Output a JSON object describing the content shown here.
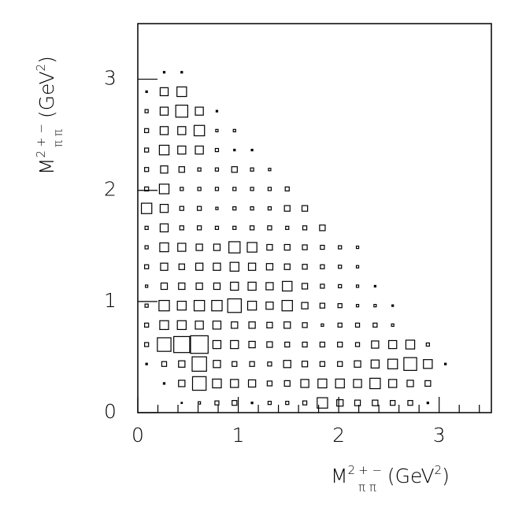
{
  "chart_data": {
    "type": "box2d",
    "x_centers": [
      0.0875,
      0.2625,
      0.4375,
      0.6125,
      0.7875,
      0.9625,
      1.1375,
      1.3125,
      1.4875,
      1.6625,
      1.8375,
      2.0125,
      2.1875,
      2.3625,
      2.5375,
      2.7125,
      2.8875,
      3.0625
    ],
    "y_centers": [
      0.0875,
      0.2625,
      0.4375,
      0.6125,
      0.7875,
      0.9625,
      1.1375,
      1.3125,
      1.4875,
      1.6625,
      1.8375,
      2.0125,
      2.1875,
      2.3625,
      2.5375,
      2.7125,
      2.8875,
      3.0625
    ],
    "bin_width": 0.175,
    "values": [
      [
        null,
        null,
        1,
        3,
        5,
        6,
        2,
        4,
        4,
        5,
        13,
        8,
        7,
        7,
        6,
        6,
        2,
        null
      ],
      [
        null,
        2,
        8,
        17,
        11,
        10,
        9,
        6,
        7,
        10,
        11,
        11,
        10,
        13,
        10,
        8,
        7,
        null
      ],
      [
        2,
        6,
        8,
        18,
        9,
        6,
        6,
        5,
        9,
        7,
        6,
        6,
        8,
        10,
        12,
        16,
        11,
        2
      ],
      [
        5,
        17,
        20,
        22,
        10,
        10,
        8,
        7,
        6,
        6,
        6,
        6,
        5,
        9,
        10,
        11,
        4,
        null
      ],
      [
        5,
        11,
        11,
        10,
        10,
        8,
        8,
        7,
        8,
        6,
        3,
        5,
        5,
        5,
        3,
        null,
        null,
        null
      ],
      [
        4,
        13,
        11,
        13,
        13,
        17,
        11,
        9,
        13,
        8,
        6,
        5,
        3,
        3,
        2,
        null,
        null,
        null
      ],
      [
        3,
        8,
        8,
        8,
        8,
        10,
        10,
        9,
        12,
        7,
        5,
        4,
        3,
        2,
        null,
        null,
        null,
        null
      ],
      [
        5,
        9,
        7,
        9,
        9,
        11,
        9,
        8,
        7,
        6,
        5,
        4,
        3,
        null,
        null,
        null,
        null,
        null
      ],
      [
        4,
        11,
        10,
        8,
        8,
        14,
        12,
        7,
        7,
        6,
        5,
        4,
        3,
        null,
        null,
        null,
        null,
        null
      ],
      [
        4,
        10,
        5,
        5,
        4,
        4,
        5,
        5,
        4,
        5,
        7,
        null,
        null,
        null,
        null,
        null,
        null,
        null
      ],
      [
        13,
        10,
        5,
        5,
        3,
        4,
        4,
        4,
        7,
        7,
        null,
        null,
        null,
        null,
        null,
        null,
        null,
        null
      ],
      [
        5,
        12,
        4,
        4,
        4,
        4,
        4,
        4,
        5,
        null,
        null,
        null,
        null,
        null,
        null,
        null,
        null,
        null
      ],
      [
        5,
        9,
        7,
        4,
        4,
        7,
        4,
        3,
        null,
        null,
        null,
        null,
        null,
        null,
        null,
        null,
        null,
        null
      ],
      [
        5,
        12,
        10,
        10,
        4,
        2,
        2,
        null,
        null,
        null,
        null,
        null,
        null,
        null,
        null,
        null,
        null,
        null
      ],
      [
        5,
        10,
        10,
        13,
        3,
        3,
        null,
        null,
        null,
        null,
        null,
        null,
        null,
        null,
        null,
        null,
        null,
        null
      ],
      [
        4,
        10,
        15,
        10,
        2,
        null,
        null,
        null,
        null,
        null,
        null,
        null,
        null,
        null,
        null,
        null,
        null,
        null
      ],
      [
        2,
        10,
        12,
        null,
        null,
        null,
        null,
        null,
        null,
        null,
        null,
        null,
        null,
        null,
        null,
        null,
        null,
        null
      ],
      [
        null,
        2,
        2,
        null,
        null,
        null,
        null,
        null,
        null,
        null,
        null,
        null,
        null,
        null,
        null,
        null,
        null,
        null
      ]
    ],
    "xlim": [
      0,
      3.52
    ],
    "ylim": [
      0,
      3.5
    ],
    "xticks": [
      0,
      1,
      2,
      3
    ],
    "yticks": [
      0,
      1,
      2,
      3
    ],
    "xminorticks": [
      0.2,
      0.4,
      0.6,
      0.8,
      1.2,
      1.4,
      1.6,
      1.8,
      2.2,
      2.4,
      2.6,
      2.8,
      3.2,
      3.4
    ],
    "xlabel": {
      "symbol": "M",
      "power": "2",
      "charges": "+ −",
      "particles": "π π",
      "unit": "(GeV",
      "unit_power": "2",
      "close": ")"
    },
    "ylabel": {
      "symbol": "M",
      "power": "2",
      "charges": "+ −",
      "particles": "π π",
      "unit": "(GeV",
      "unit_power": "2",
      "close": ")"
    }
  }
}
